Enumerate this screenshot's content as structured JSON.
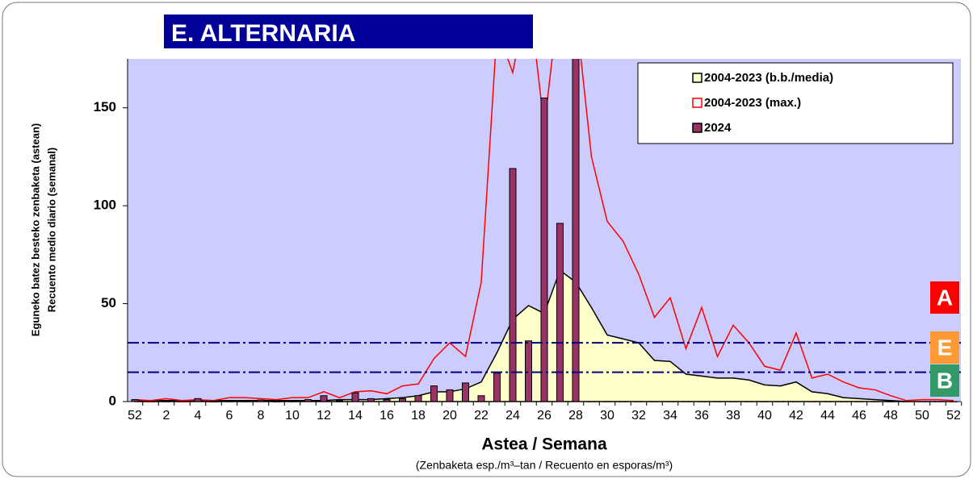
{
  "chart_data": {
    "type": "combo",
    "title": "E. ALTERNARIA",
    "y_label_lines": [
      "Eguneko batez besteko zenbaketa (astean)",
      "Recuento medio diario (semanal)"
    ],
    "x_label": "Astea / Semana",
    "x_sublabel": "(Zenbaketa esp./m³–tan / Recuento en esporas/m³)",
    "categories": [
      "52",
      null,
      "2",
      null,
      "4",
      null,
      "6",
      null,
      "8",
      null,
      "10",
      null,
      "12",
      null,
      "14",
      null,
      "16",
      null,
      "18",
      null,
      "20",
      null,
      "22",
      null,
      "24",
      null,
      "26",
      null,
      "28",
      null,
      "30",
      null,
      "32",
      null,
      "34",
      null,
      "36",
      null,
      "38",
      null,
      "40",
      null,
      "42",
      null,
      "44",
      null,
      "46",
      null,
      "48",
      null,
      "50",
      null,
      "52"
    ],
    "series": [
      {
        "name": "2004-2023 (b.b./media)",
        "kind": "area",
        "color": "#ffffcc",
        "values": [
          0.5,
          0.5,
          0.5,
          0.5,
          0.5,
          0.5,
          0.5,
          0.5,
          0.5,
          0.5,
          0.5,
          0.5,
          0.5,
          1,
          1,
          1,
          1.5,
          2,
          3,
          5,
          5,
          6.5,
          10,
          25,
          42,
          49,
          45,
          67,
          61,
          48,
          34,
          32,
          30,
          21,
          20.5,
          14,
          13,
          12,
          12,
          11,
          8.5,
          8,
          10,
          5,
          4,
          2,
          1.5,
          1,
          0.5,
          0,
          0,
          0,
          0
        ]
      },
      {
        "name": "2004-2023 (max.)",
        "kind": "line",
        "color": "#ff0000",
        "values": [
          1,
          0.5,
          1.5,
          0.5,
          1,
          0.5,
          2,
          2,
          1.5,
          1,
          2,
          2,
          5,
          2,
          5,
          5.5,
          4,
          8,
          9,
          22,
          30,
          23,
          61,
          190,
          168,
          210,
          140,
          210,
          200,
          125,
          92,
          82,
          65,
          43,
          53,
          27,
          48,
          23,
          39,
          30,
          18,
          16,
          35,
          12,
          14,
          10,
          7,
          6,
          3,
          0.5,
          1,
          1,
          0.5
        ]
      },
      {
        "name": "2024",
        "kind": "bar",
        "color": "#993366",
        "values": [
          1,
          0,
          0,
          0,
          1.5,
          0.3,
          0.5,
          0.5,
          0.8,
          0.3,
          0.5,
          1,
          3,
          0.5,
          4.5,
          1.5,
          1,
          1.5,
          3,
          8,
          6,
          9.5,
          3,
          14.5,
          119,
          31,
          155,
          91,
          200,
          0,
          0,
          0,
          0,
          0,
          0,
          0,
          0,
          0,
          0,
          0,
          0,
          0,
          0,
          0,
          0,
          0,
          0,
          0,
          0,
          0,
          0,
          0,
          0
        ]
      }
    ],
    "thresholds": [
      30,
      15
    ],
    "levels": [
      {
        "label": "A",
        "color": "#ff0000"
      },
      {
        "label": "E",
        "color": "#ff9933"
      },
      {
        "label": "B",
        "color": "#339966"
      }
    ],
    "ylim": [
      0,
      175
    ],
    "yticks": [
      0,
      50,
      100,
      150
    ],
    "background": "#ccccff"
  }
}
